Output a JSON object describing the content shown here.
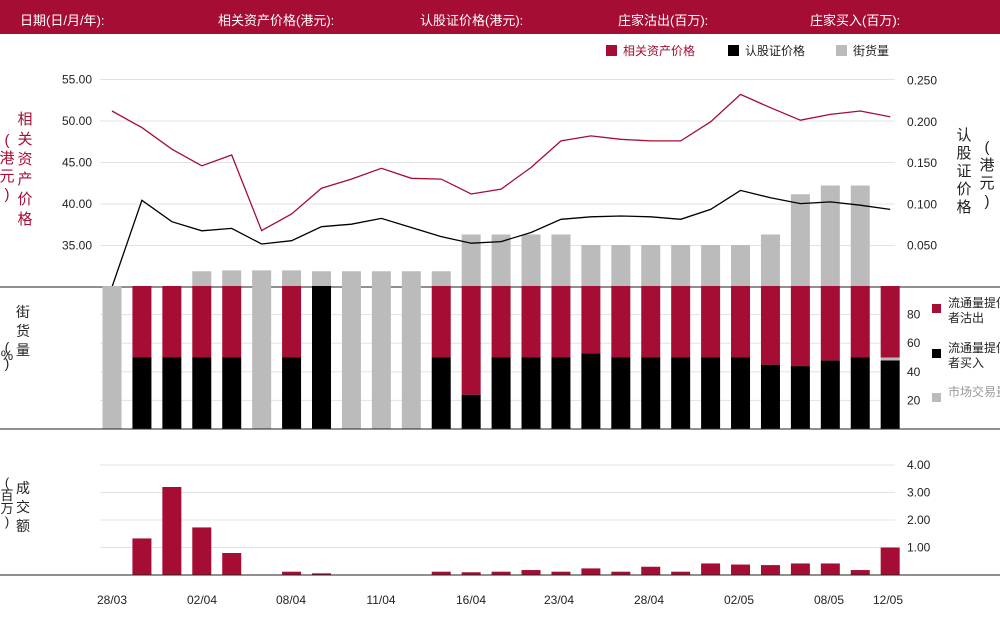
{
  "header": {
    "date_label": "日期(日/月/年):",
    "underlying_price_label": "相关资产价格(港元):",
    "warrant_price_label": "认股证价格(港元):",
    "dealer_sell_label": "庄家沽出(百万):",
    "dealer_buy_label": "庄家买入(百万):"
  },
  "colors": {
    "brand": "#a50d34",
    "warrant": "#000000",
    "street": "#bbbbbb"
  },
  "chart_data": [
    {
      "type": "line",
      "x_ticks": [
        "28/03",
        "02/04",
        "08/04",
        "11/04",
        "16/04",
        "23/04",
        "28/04",
        "02/05",
        "08/05",
        "12/05"
      ],
      "legend": [
        "相关资产价格",
        "认股证价格",
        "街货量"
      ],
      "left_axis": {
        "label": "相关资产价格(港元)",
        "ticks": [
          "35.00",
          "40.00",
          "45.00",
          "50.00",
          "55.00"
        ]
      },
      "right_axis": {
        "label": "认股证价格(港元)",
        "ticks": [
          "0.050",
          "0.100",
          "0.150",
          "0.200",
          "0.250"
        ]
      },
      "series": [
        {
          "name": "相关资产价格",
          "axis": "left",
          "values": [
            51.2,
            49.2,
            46.6,
            44.6,
            45.9,
            36.8,
            38.8,
            41.9,
            43.0,
            44.3,
            43.1,
            43.0,
            41.2,
            41.8,
            44.4,
            47.6,
            48.2,
            47.8,
            47.6,
            47.6,
            49.9,
            53.2,
            51.6,
            50.1,
            50.8,
            51.2,
            50.5
          ]
        },
        {
          "name": "认股证价格",
          "axis": "right",
          "values": [
            0.0,
            0.105,
            0.079,
            0.068,
            0.071,
            0.052,
            0.056,
            0.073,
            0.076,
            0.083,
            0.072,
            0.061,
            0.053,
            0.055,
            0.066,
            0.082,
            0.085,
            0.086,
            0.085,
            0.082,
            0.094,
            0.117,
            0.108,
            0.101,
            0.103,
            0.099,
            0.094
          ]
        }
      ],
      "street_volume": [
        0,
        0,
        0,
        9,
        9.5,
        9.5,
        9.5,
        9,
        9,
        9,
        9,
        9,
        30,
        30,
        30,
        30,
        24,
        24,
        24,
        24,
        24,
        24,
        30,
        53,
        58,
        58,
        0
      ]
    },
    {
      "type": "bar",
      "ylabel": "%街货量",
      "y_ticks": [
        "20",
        "40",
        "60",
        "80"
      ],
      "legend": [
        "流通量提供者沽出",
        "流通量提供者买入",
        "市场交易量"
      ],
      "series": [
        {
          "name": "流通量提供者沽出",
          "values": [
            0,
            50,
            50,
            50,
            50,
            0,
            50,
            0,
            0,
            0,
            0,
            50,
            76,
            50,
            50,
            50,
            47,
            50,
            50,
            50,
            50,
            50,
            55,
            56,
            52,
            50,
            50
          ]
        },
        {
          "name": "流通量提供者买入",
          "values": [
            0,
            50,
            50,
            50,
            50,
            0,
            50,
            100,
            0,
            0,
            0,
            50,
            24,
            50,
            50,
            50,
            53,
            50,
            50,
            50,
            50,
            50,
            45,
            44,
            48,
            50,
            48
          ]
        },
        {
          "name": "市场交易量",
          "values": [
            100,
            0,
            0,
            0,
            0,
            100,
            0,
            0,
            100,
            100,
            100,
            0,
            0,
            0,
            0,
            0,
            0,
            0,
            0,
            0,
            0,
            0,
            0,
            0,
            0,
            0,
            2
          ]
        }
      ]
    },
    {
      "type": "bar",
      "ylabel": "成交额(百万)",
      "y_ticks": [
        "1.00",
        "2.00",
        "3.00",
        "4.00"
      ],
      "values": [
        0,
        1.33,
        3.2,
        1.73,
        0.8,
        0,
        0.12,
        0.06,
        0,
        0,
        0,
        0.12,
        0.1,
        0.12,
        0.18,
        0.12,
        0.24,
        0.12,
        0.3,
        0.12,
        0.42,
        0.38,
        0.36,
        0.42,
        0.42,
        0.18,
        1.0
      ]
    }
  ]
}
